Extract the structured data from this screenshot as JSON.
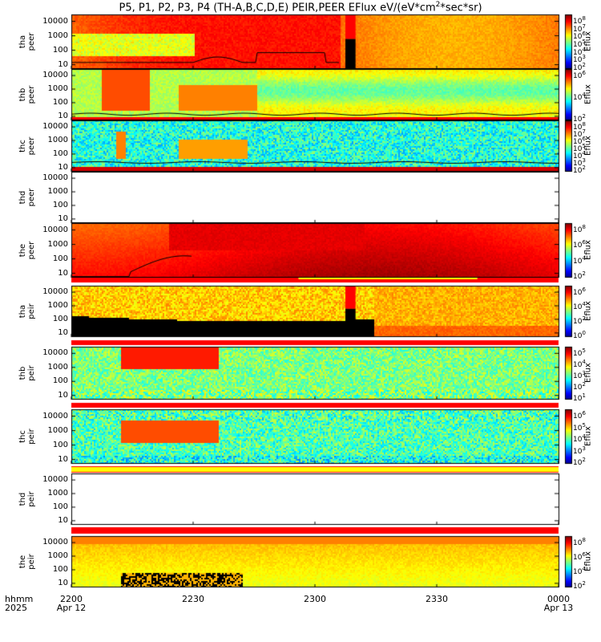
{
  "title": "P5, P1, P2, P3, P4 (TH-A,B,C,D,E) PEIR,PEER EFlux eV/(eV*cm^2*sec*sr)",
  "title_parts": {
    "main": "P5, P1, P2, P3, P4 (TH-A,B,C,D,E) PEIR,PEER EFlux eV/(eV*cm",
    "sup": "2",
    "tail": "*sec*sr)"
  },
  "x_header": {
    "line1": "hhmm",
    "line2": "2025"
  },
  "x_ticks": [
    {
      "label": "2200",
      "sub": "Apr 12",
      "t": 0
    },
    {
      "label": "2230",
      "sub": "",
      "t": 30
    },
    {
      "label": "2300",
      "sub": "",
      "t": 60
    },
    {
      "label": "2330",
      "sub": "",
      "t": 90
    },
    {
      "label": "0000",
      "sub": "Apr 13",
      "t": 120
    }
  ],
  "colors": {
    "flag_red": "#ff0000",
    "flag_yellow": "#ffff00",
    "frame": "#000000"
  },
  "chart_data": {
    "type": "heatmap",
    "x_range_minutes": [
      0,
      120
    ],
    "y_scale": "log",
    "y_ticks": [
      "10",
      "100",
      "1000",
      "10000"
    ],
    "panels": [
      {
        "id": "tha-peer",
        "label_line1": "tha",
        "label_line2": "peer",
        "has_data": true,
        "colorbar_label": "Eflux",
        "colorbar_ticks": [
          "10^2",
          "10^3",
          "10^4",
          "10^5",
          "10^6",
          "10^7",
          "10^8"
        ],
        "colorbar_range": [
          2,
          8
        ],
        "gap_minutes": [
          67.5,
          70
        ]
      },
      {
        "id": "thb-peer",
        "label_line1": "thb",
        "label_line2": "peer",
        "has_data": true,
        "colorbar_label": "Eflux",
        "colorbar_ticks": [
          "10^2",
          "10^4",
          "10^6"
        ],
        "colorbar_range": [
          1,
          7
        ]
      },
      {
        "id": "thc-peer",
        "label_line1": "thc",
        "label_line2": "peer",
        "has_data": true,
        "colorbar_label": "Eflux",
        "colorbar_ticks": [
          "10^2",
          "10^3",
          "10^4",
          "10^5",
          "10^6",
          "10^7",
          "10^8"
        ],
        "colorbar_range": [
          2,
          8
        ]
      },
      {
        "id": "thd-peer",
        "label_line1": "thd",
        "label_line2": "peer",
        "has_data": false
      },
      {
        "id": "the-peer",
        "label_line1": "the",
        "label_line2": "peer",
        "has_data": true,
        "colorbar_label": "Eflux",
        "colorbar_ticks": [
          "10^2",
          "10^4",
          "10^6",
          "10^8"
        ],
        "colorbar_range": [
          1,
          8
        ]
      },
      {
        "id": "tha-peir",
        "label_line1": "tha",
        "label_line2": "peir",
        "has_data": true,
        "colorbar_label": "Eflux",
        "colorbar_ticks": [
          "10^0",
          "10^2",
          "10^4",
          "10^6"
        ],
        "colorbar_range": [
          0,
          7
        ],
        "gap_minutes": [
          67.5,
          70
        ]
      },
      {
        "id": "thb-peir",
        "label_line1": "thb",
        "label_line2": "peir",
        "has_data": true,
        "colorbar_label": "Eflux",
        "colorbar_ticks": [
          "10^1",
          "10^2",
          "10^3",
          "10^4",
          "10^5"
        ],
        "colorbar_range": [
          1,
          5
        ]
      },
      {
        "id": "thc-peir",
        "label_line1": "thc",
        "label_line2": "peir",
        "has_data": true,
        "colorbar_label": "Eflux",
        "colorbar_ticks": [
          "10^2",
          "10^3",
          "10^4",
          "10^5",
          "10^6"
        ],
        "colorbar_range": [
          1.5,
          6
        ]
      },
      {
        "id": "thd-peir",
        "label_line1": "thd",
        "label_line2": "peir",
        "has_data": false
      },
      {
        "id": "the-peir",
        "label_line1": "the",
        "label_line2": "peir",
        "has_data": true,
        "colorbar_label": "Eflux",
        "colorbar_ticks": [
          "10^2",
          "10^4",
          "10^6",
          "10^8"
        ],
        "colorbar_range": [
          1,
          8
        ]
      }
    ]
  }
}
